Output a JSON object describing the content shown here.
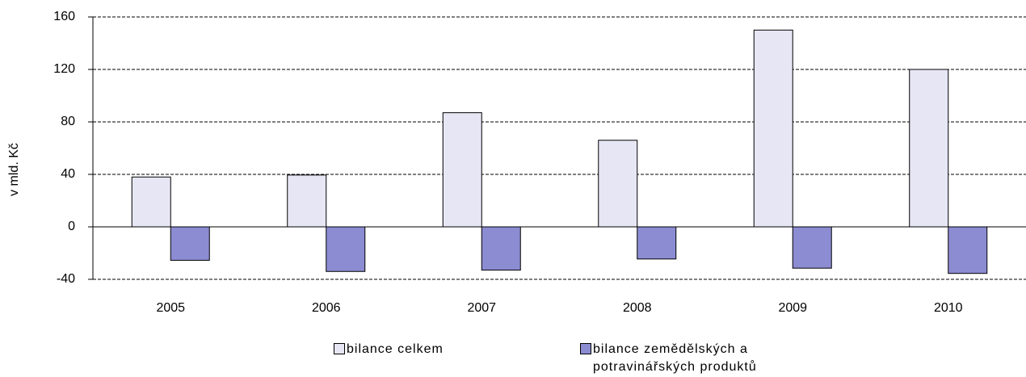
{
  "chart_data": {
    "type": "bar",
    "y_label": "v mld. Kč",
    "categories": [
      "2005",
      "2006",
      "2007",
      "2008",
      "2009",
      "2010"
    ],
    "series": [
      {
        "name": "bilance celkem",
        "color": "#e6e6f5",
        "values": [
          38,
          39.5,
          87,
          66,
          150,
          120
        ]
      },
      {
        "name": "bilance zemědělských a potravinářských produktů",
        "color": "#8c8cd2",
        "values": [
          -25.5,
          -34,
          -33,
          -24.5,
          -31.5,
          -35.5
        ]
      }
    ],
    "ylim": [
      -40,
      160
    ],
    "yticks": [
      -40,
      0,
      40,
      80,
      120,
      160
    ],
    "grid": true,
    "legend": "bottom"
  }
}
